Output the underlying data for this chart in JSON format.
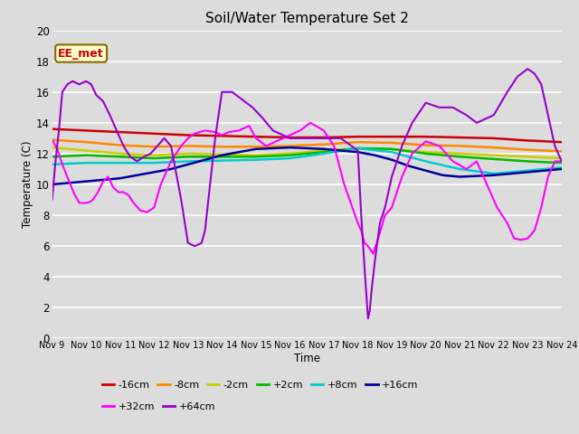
{
  "title": "Soil/Water Temperature Set 2",
  "xlabel": "Time",
  "ylabel": "Temperature (C)",
  "ylim": [
    0,
    20
  ],
  "xlim": [
    0,
    15
  ],
  "bg_color": "#dcdcdc",
  "annotation_text": "EE_met",
  "annotation_bg": "#ffffcc",
  "annotation_border": "#886600",
  "xtick_labels": [
    "Nov 9",
    "Nov 10",
    "Nov 11",
    "Nov 12",
    "Nov 13",
    "Nov 14",
    "Nov 15",
    "Nov 16",
    "Nov 17",
    "Nov 18",
    "Nov 19",
    "Nov 20",
    "Nov 21",
    "Nov 22",
    "Nov 23",
    "Nov 24"
  ],
  "legend_order": [
    "-16cm",
    "-8cm",
    "-2cm",
    "+2cm",
    "+8cm",
    "+16cm",
    "+32cm",
    "+64cm"
  ],
  "colors": {
    "-16cm": "#cc0000",
    "-8cm": "#ff8800",
    "-2cm": "#cccc00",
    "+2cm": "#00bb00",
    "+8cm": "#00cccc",
    "+16cm": "#000099",
    "+32cm": "#ff00ff",
    "+64cm": "#9900cc"
  },
  "series_x": {
    "-16cm": [
      0,
      1,
      2,
      3,
      4,
      5,
      6,
      7,
      8,
      9,
      10,
      11,
      12,
      13,
      14,
      15
    ],
    "-8cm": [
      0,
      1,
      2,
      3,
      4,
      5,
      6,
      7,
      8,
      9,
      10,
      11,
      12,
      13,
      14,
      15
    ],
    "-2cm": [
      0,
      1,
      2,
      3,
      4,
      5,
      6,
      7,
      8,
      9,
      10,
      11,
      12,
      13,
      14,
      15
    ],
    "+2cm": [
      0,
      1,
      2,
      3,
      4,
      5,
      6,
      7,
      8,
      9,
      10,
      11,
      12,
      13,
      14,
      15
    ],
    "+8cm": [
      0,
      1,
      2,
      3,
      4,
      5,
      6,
      7,
      8,
      9,
      10,
      11,
      12,
      13,
      14,
      15
    ],
    "+16cm": [
      0,
      0.25,
      0.5,
      0.75,
      1,
      1.25,
      1.5,
      1.75,
      2,
      2.5,
      3,
      3.5,
      4,
      4.5,
      5,
      5.5,
      6,
      6.5,
      7,
      7.5,
      8,
      8.5,
      9,
      9.5,
      10,
      10.5,
      11,
      11.5,
      12,
      12.5,
      13,
      13.5,
      14,
      14.5,
      15
    ],
    "+32cm": [
      0,
      0.15,
      0.3,
      0.5,
      0.65,
      0.8,
      1.0,
      1.1,
      1.2,
      1.35,
      1.5,
      1.65,
      1.8,
      1.95,
      2.1,
      2.25,
      2.4,
      2.6,
      2.8,
      3.0,
      3.2,
      3.5,
      3.8,
      4.0,
      4.2,
      4.5,
      4.8,
      5.0,
      5.2,
      5.5,
      5.8,
      6.0,
      6.3,
      6.6,
      7.0,
      7.3,
      7.6,
      8.0,
      8.3,
      8.6,
      9.0,
      9.1,
      9.2,
      9.3,
      9.45,
      9.6,
      9.8,
      10.0,
      10.3,
      10.6,
      11.0,
      11.4,
      11.8,
      12.2,
      12.5,
      12.8,
      13.1,
      13.4,
      13.6,
      13.8,
      14.0,
      14.2,
      14.4,
      14.6,
      14.8,
      15.0
    ],
    "+64cm": [
      0,
      0.1,
      0.2,
      0.3,
      0.45,
      0.6,
      0.8,
      1.0,
      1.15,
      1.3,
      1.5,
      1.7,
      1.9,
      2.1,
      2.3,
      2.5,
      2.7,
      2.9,
      3.1,
      3.3,
      3.5,
      3.8,
      4.0,
      4.2,
      4.4,
      4.5,
      4.6,
      4.7,
      4.8,
      4.9,
      5.0,
      5.3,
      5.6,
      5.9,
      6.2,
      6.5,
      7.0,
      7.5,
      8.0,
      8.5,
      9.0,
      9.1,
      9.2,
      9.3,
      9.35,
      9.4,
      9.5,
      9.65,
      9.8,
      10.0,
      10.3,
      10.6,
      11.0,
      11.4,
      11.8,
      12.2,
      12.5,
      13.0,
      13.4,
      13.7,
      14.0,
      14.2,
      14.4,
      14.6,
      14.8,
      15.0
    ]
  },
  "series_y": {
    "-16cm": [
      13.6,
      13.5,
      13.4,
      13.3,
      13.2,
      13.15,
      13.1,
      13.05,
      13.05,
      13.1,
      13.1,
      13.1,
      13.05,
      13.0,
      12.85,
      12.75
    ],
    "-8cm": [
      12.9,
      12.75,
      12.55,
      12.45,
      12.5,
      12.45,
      12.45,
      12.5,
      12.6,
      12.75,
      12.7,
      12.55,
      12.5,
      12.4,
      12.25,
      12.15
    ],
    "-2cm": [
      12.4,
      12.2,
      12.0,
      11.9,
      12.0,
      11.95,
      11.9,
      12.0,
      12.2,
      12.35,
      12.3,
      12.1,
      12.0,
      11.9,
      11.8,
      11.7
    ],
    "+2cm": [
      11.8,
      11.9,
      11.8,
      11.7,
      11.8,
      11.8,
      11.8,
      11.9,
      12.1,
      12.35,
      12.3,
      12.0,
      11.8,
      11.65,
      11.5,
      11.4
    ],
    "+8cm": [
      11.3,
      11.4,
      11.4,
      11.4,
      11.5,
      11.55,
      11.6,
      11.7,
      12.0,
      12.35,
      12.1,
      11.5,
      11.0,
      10.7,
      10.9,
      11.1
    ],
    "+16cm": [
      10.0,
      10.05,
      10.1,
      10.15,
      10.2,
      10.25,
      10.3,
      10.35,
      10.4,
      10.6,
      10.8,
      11.0,
      11.3,
      11.6,
      11.9,
      12.1,
      12.3,
      12.35,
      12.4,
      12.35,
      12.3,
      12.2,
      12.1,
      11.9,
      11.6,
      11.2,
      10.9,
      10.6,
      10.5,
      10.55,
      10.6,
      10.7,
      10.8,
      10.9,
      11.0
    ],
    "+32cm": [
      12.9,
      12.3,
      11.3,
      10.2,
      9.4,
      8.8,
      8.8,
      8.85,
      9.0,
      9.5,
      10.2,
      10.5,
      9.8,
      9.5,
      9.5,
      9.3,
      8.8,
      8.3,
      8.2,
      8.5,
      10.0,
      11.5,
      12.5,
      13.0,
      13.3,
      13.5,
      13.4,
      13.2,
      13.4,
      13.5,
      13.8,
      13.0,
      12.5,
      12.8,
      13.2,
      13.5,
      14.0,
      13.5,
      12.5,
      10.0,
      7.5,
      7.0,
      6.2,
      6.0,
      5.5,
      6.5,
      8.0,
      8.5,
      10.5,
      12.0,
      12.8,
      12.5,
      11.5,
      11.0,
      11.5,
      10.0,
      8.5,
      7.5,
      6.5,
      6.4,
      6.5,
      7.0,
      8.5,
      10.5,
      11.5,
      11.5
    ],
    "+64cm": [
      9.0,
      11.5,
      13.5,
      16.0,
      16.5,
      16.7,
      16.5,
      16.7,
      16.5,
      15.8,
      15.4,
      14.5,
      13.5,
      12.5,
      11.8,
      11.5,
      11.8,
      12.0,
      12.5,
      13.0,
      12.5,
      9.0,
      6.2,
      6.0,
      6.2,
      7.0,
      9.0,
      11.0,
      13.0,
      14.5,
      16.0,
      16.0,
      15.5,
      15.0,
      14.3,
      13.5,
      13.0,
      13.0,
      13.0,
      13.0,
      12.2,
      8.0,
      4.5,
      1.3,
      1.8,
      3.0,
      5.0,
      7.5,
      8.5,
      10.5,
      12.5,
      14.0,
      15.3,
      15.0,
      15.0,
      14.5,
      14.0,
      14.5,
      16.0,
      17.0,
      17.5,
      17.2,
      16.5,
      14.5,
      12.5,
      11.5
    ]
  }
}
